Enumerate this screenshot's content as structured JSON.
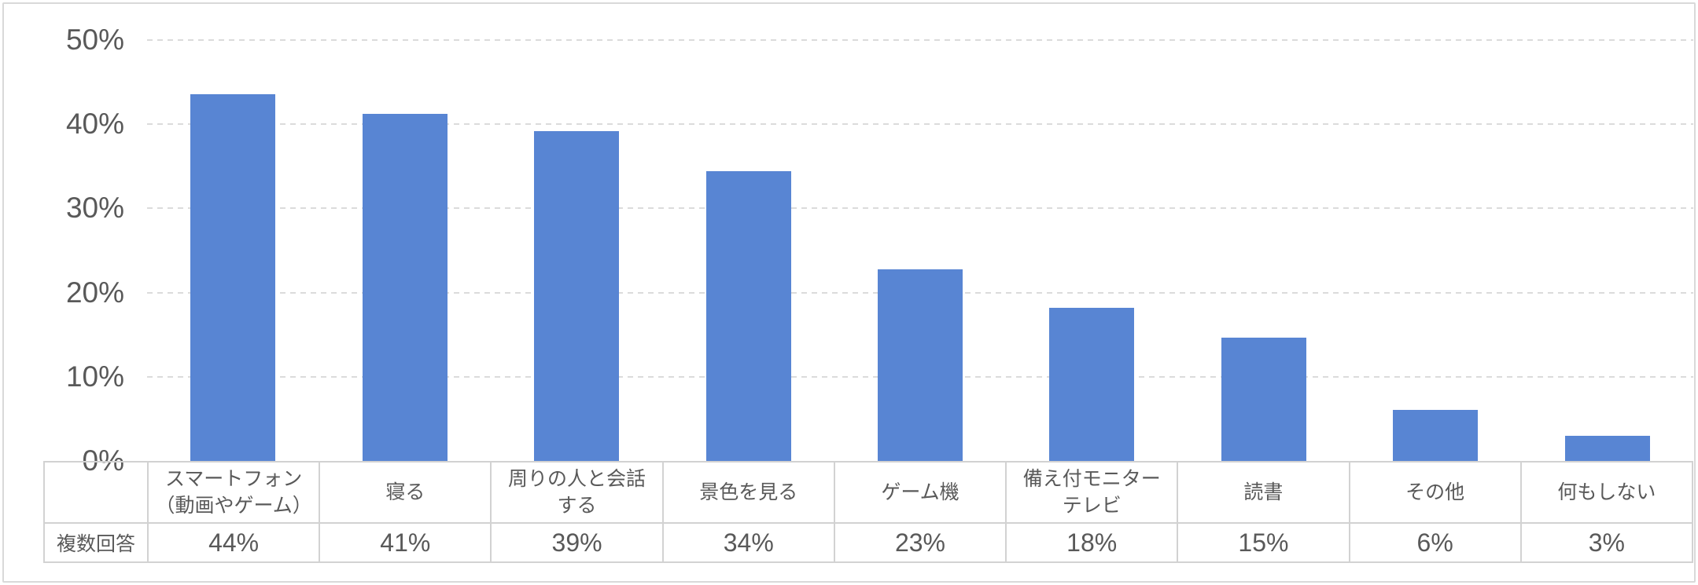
{
  "chart_data": {
    "type": "bar",
    "title": "",
    "xlabel": "",
    "ylabel": "",
    "ylim": [
      0,
      50
    ],
    "ytick_labels": [
      "0%",
      "10%",
      "20%",
      "30%",
      "40%",
      "50%"
    ],
    "grid": "horizontal-dashed",
    "legend_position": "none",
    "shows_data_table": true,
    "series_name": "複数回答",
    "categories": [
      "スマートフォン\n（動画やゲーム）",
      "寝る",
      "周りの人と会話\nする",
      "景色を見る",
      "ゲーム機",
      "備え付モニター\nテレビ",
      "読書",
      "その他",
      "何もしない"
    ],
    "values": [
      44,
      41,
      39,
      34,
      23,
      18,
      15,
      6,
      3
    ],
    "value_labels": [
      "44%",
      "41%",
      "39%",
      "34%",
      "23%",
      "18%",
      "15%",
      "6%",
      "3%"
    ],
    "bar_heights_pct_measured": [
      43.6,
      41.2,
      39.2,
      34.4,
      22.8,
      18.2,
      14.6,
      6.1,
      3.0
    ]
  },
  "colors": {
    "bar": "#5885D3",
    "gridline": "#DBDBDB",
    "axis_text": "#595959",
    "table_border": "#D2D2D2",
    "frame_border": "#D9D9D9",
    "background": "#FFFFFF"
  }
}
